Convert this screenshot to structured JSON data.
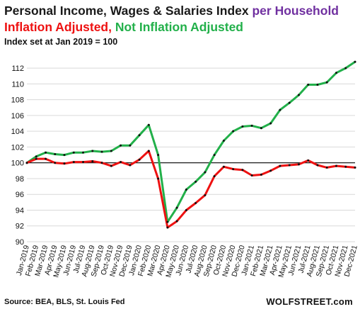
{
  "header": {
    "title_main": "Personal Income, Wages & Salaries Index",
    "title_accent": "per Household",
    "subtitle_red": "Inflation Adjusted,",
    "subtitle_green": "Not Inflation Adjusted",
    "note": "Index set at Jan 2019 = 100"
  },
  "footer": {
    "source": "Source: BEA, BLS, St. Louis Fed",
    "brand": "WOLFSTREET.com"
  },
  "colors": {
    "inflation_adjusted": "#ee1111",
    "not_inflation_adjusted": "#22b04a",
    "title_accent": "#7030a0",
    "reference_line": "#000000",
    "gridline": "#d9d9d9",
    "marker": "#111111"
  },
  "chart_data": {
    "type": "line",
    "title": "Personal Income, Wages & Salaries Index per Household",
    "subtitle": "Inflation Adjusted, Not Inflation Adjusted",
    "xlabel": "",
    "ylabel": "",
    "ylim": [
      90,
      113
    ],
    "yticks": [
      90,
      92,
      94,
      96,
      98,
      100,
      102,
      104,
      106,
      108,
      110,
      112
    ],
    "reference_line": 100,
    "grid": "horizontal",
    "legend": "none",
    "categories": [
      "Jan-2019",
      "Feb-2019",
      "Mar-2019",
      "Apr-2019",
      "May-2019",
      "Jun-2019",
      "Jul-2019",
      "Aug-2019",
      "Sep-2019",
      "Oct-2019",
      "Nov-2019",
      "Dec-2019",
      "Jan-2020",
      "Feb-2020",
      "Mar-2020",
      "Apr-2020",
      "May-2020",
      "Jun-2020",
      "Jul-2020",
      "Aug-2020",
      "Sep-2020",
      "Oct-2020",
      "Nov-2020",
      "Dec-2020",
      "Jan-2021",
      "Feb-2021",
      "Mar-2021",
      "Apr-2021",
      "May-2021",
      "Jun-2021",
      "Jul-2021",
      "Aug-2021",
      "Sep-2021",
      "Oct-2021",
      "Nov-2021",
      "Dec-2021"
    ],
    "tick_labels": [
      "Jan-2019",
      "Feb-2019",
      "Mar-2019",
      "Apr-2019",
      "May-2019",
      "Jun-2019",
      "Jul-2019",
      "Aug-2019",
      "Sep-2019",
      "Oct-2019",
      "Nov-2019",
      "Dec-2019",
      "Jan-2020",
      "Feb-2020",
      "Mar-2020",
      "Apr-2020",
      "May-2020",
      "Jun-2020",
      "Jul-2020",
      "Aug-2020",
      "Sep-2020",
      "Oct-2020",
      "Nov-2020",
      "Dec-2020",
      "Jan-2021",
      "Feb-2021",
      "Mar-2021",
      "Apr-2021",
      "May-2021",
      "Jun-2021",
      "Jul-2021",
      "Aug-2021",
      "Sep-2021",
      "Oct-2021",
      "Nov-2021",
      "Dec-2021"
    ],
    "series": [
      {
        "name": "Not Inflation Adjusted",
        "color": "#22b04a",
        "values": [
          100.0,
          100.8,
          101.3,
          101.1,
          101.0,
          101.3,
          101.3,
          101.5,
          101.4,
          101.5,
          102.2,
          102.2,
          103.5,
          104.8,
          101.0,
          92.5,
          94.3,
          96.6,
          97.6,
          98.8,
          101.0,
          102.8,
          104.0,
          104.6,
          104.7,
          104.4,
          105.0,
          106.7,
          107.6,
          108.6,
          109.9,
          109.9,
          110.2,
          111.4,
          112.0,
          112.8
        ]
      },
      {
        "name": "Inflation Adjusted",
        "color": "#ee1111",
        "values": [
          100.0,
          100.5,
          100.5,
          100.0,
          99.9,
          100.1,
          100.1,
          100.2,
          100.0,
          99.6,
          100.1,
          99.7,
          100.4,
          101.5,
          98.0,
          91.8,
          92.6,
          94.0,
          94.9,
          95.9,
          98.3,
          99.5,
          99.2,
          99.1,
          98.4,
          98.5,
          99.0,
          99.6,
          99.7,
          99.8,
          100.3,
          99.7,
          99.4,
          99.6,
          99.5,
          99.4
        ]
      }
    ]
  }
}
